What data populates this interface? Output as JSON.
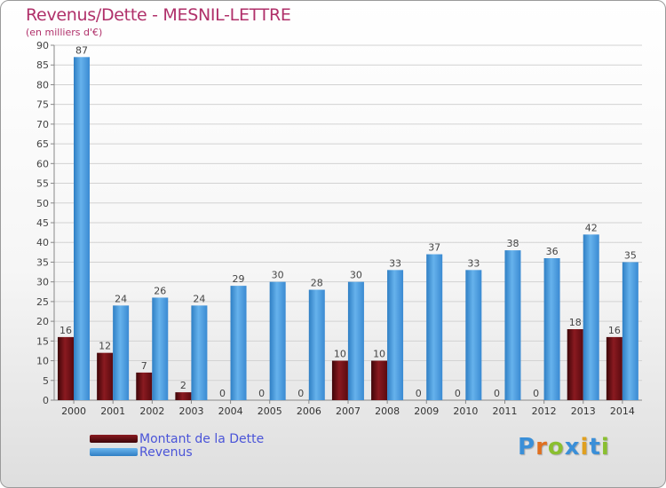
{
  "chart_data": {
    "type": "bar",
    "title": "Revenus/Dette - MESNIL-LETTRE",
    "subtitle": "(en milliers d'€)",
    "categories": [
      "2000",
      "2001",
      "2002",
      "2003",
      "2004",
      "2005",
      "2006",
      "2007",
      "2008",
      "2009",
      "2010",
      "2011",
      "2012",
      "2013",
      "2014"
    ],
    "series": [
      {
        "name": "Montant de la Dette",
        "color": "#6b0f14",
        "values": [
          16,
          12,
          7,
          2,
          0,
          0,
          0,
          10,
          10,
          0,
          0,
          0,
          0,
          18,
          16
        ]
      },
      {
        "name": "Revenus",
        "color": "#4a9fe0",
        "values": [
          87,
          24,
          26,
          24,
          29,
          30,
          28,
          30,
          33,
          37,
          33,
          38,
          36,
          42,
          35
        ]
      }
    ],
    "ylim": [
      0,
      90
    ],
    "yticks": [
      0,
      5,
      10,
      15,
      20,
      25,
      30,
      35,
      40,
      45,
      50,
      55,
      60,
      65,
      70,
      75,
      80,
      85,
      90
    ],
    "grid": true,
    "legend_position": "bottom-left"
  },
  "logo": {
    "text": "Proxiti",
    "letters": [
      "P",
      "r",
      "o",
      "x",
      "i",
      "t",
      "i"
    ],
    "colors": [
      "#3a8fd8",
      "#e07020",
      "#8abf30",
      "#3a8fd8",
      "#e0a020",
      "#3a8fd8",
      "#8abf30"
    ]
  }
}
